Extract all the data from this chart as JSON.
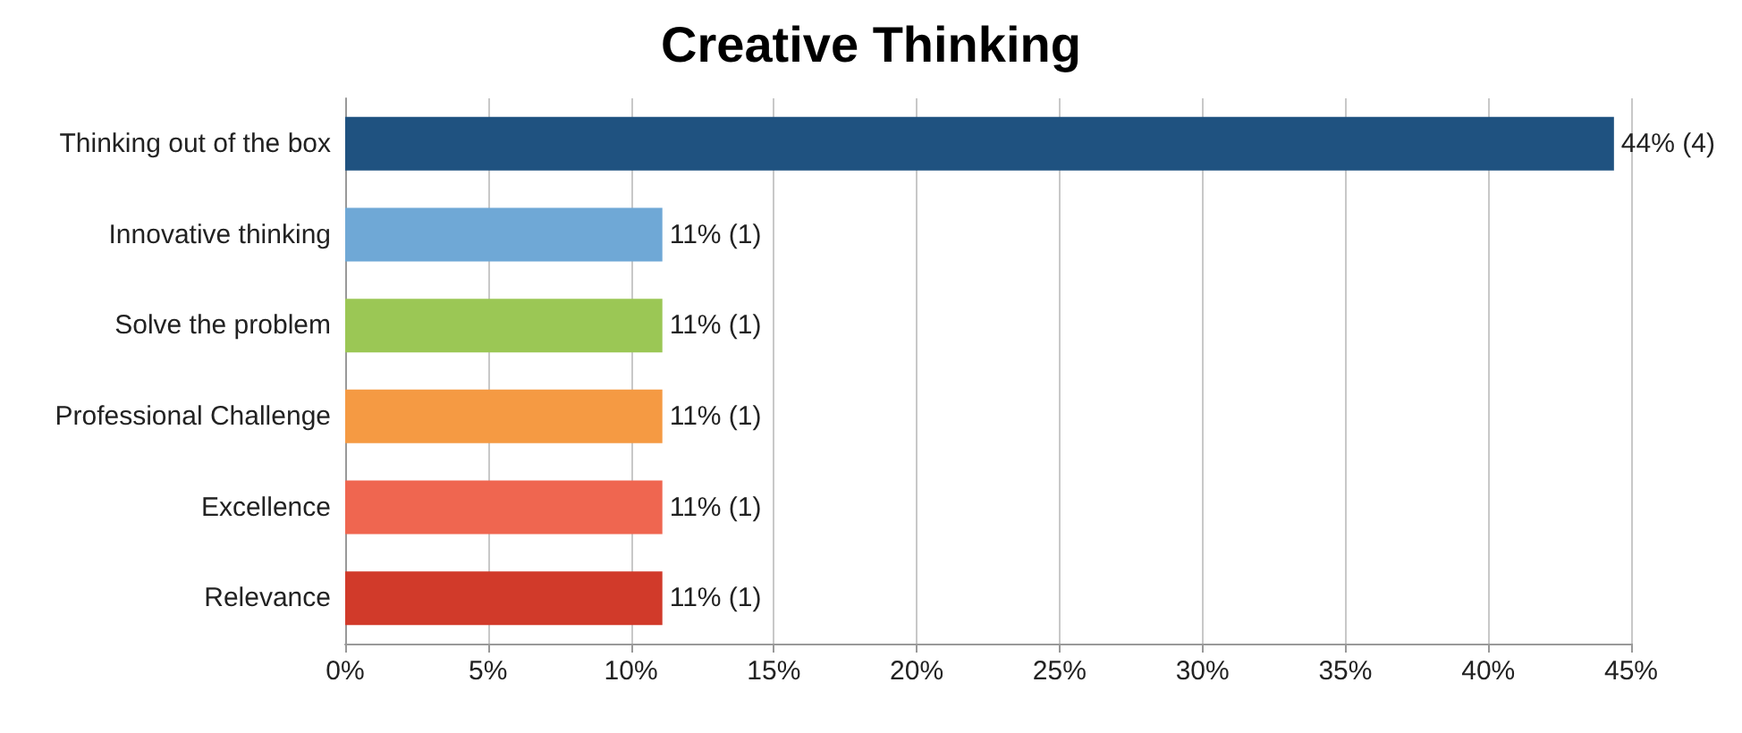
{
  "chart_data": {
    "type": "bar",
    "title": "Creative Thinking",
    "orientation": "horizontal",
    "categories": [
      "Thinking out of the box",
      "Innovative thinking",
      "Solve the problem",
      "Professional Challenge",
      "Excellence",
      "Relevance"
    ],
    "values": [
      44.4,
      11.1,
      11.1,
      11.1,
      11.1,
      11.1
    ],
    "colors": [
      "#1f5280",
      "#6fa8d6",
      "#9bc755",
      "#f59a43",
      "#ef6650",
      "#d13a2a"
    ],
    "value_labels": [
      "44% (4)",
      "11% (1)",
      "11% (1)",
      "11% (1)",
      "11% (1)",
      "11% (1)"
    ],
    "xlim": [
      0,
      45
    ],
    "xticks": [
      {
        "value": 0,
        "label": "0%"
      },
      {
        "value": 5,
        "label": "5%"
      },
      {
        "value": 10,
        "label": "10%"
      },
      {
        "value": 15,
        "label": "15%"
      },
      {
        "value": 20,
        "label": "20%"
      },
      {
        "value": 25,
        "label": "25%"
      },
      {
        "value": 30,
        "label": "30%"
      },
      {
        "value": 35,
        "label": "35%"
      },
      {
        "value": 40,
        "label": "40%"
      },
      {
        "value": 45,
        "label": "45%"
      }
    ],
    "grid": "x"
  }
}
